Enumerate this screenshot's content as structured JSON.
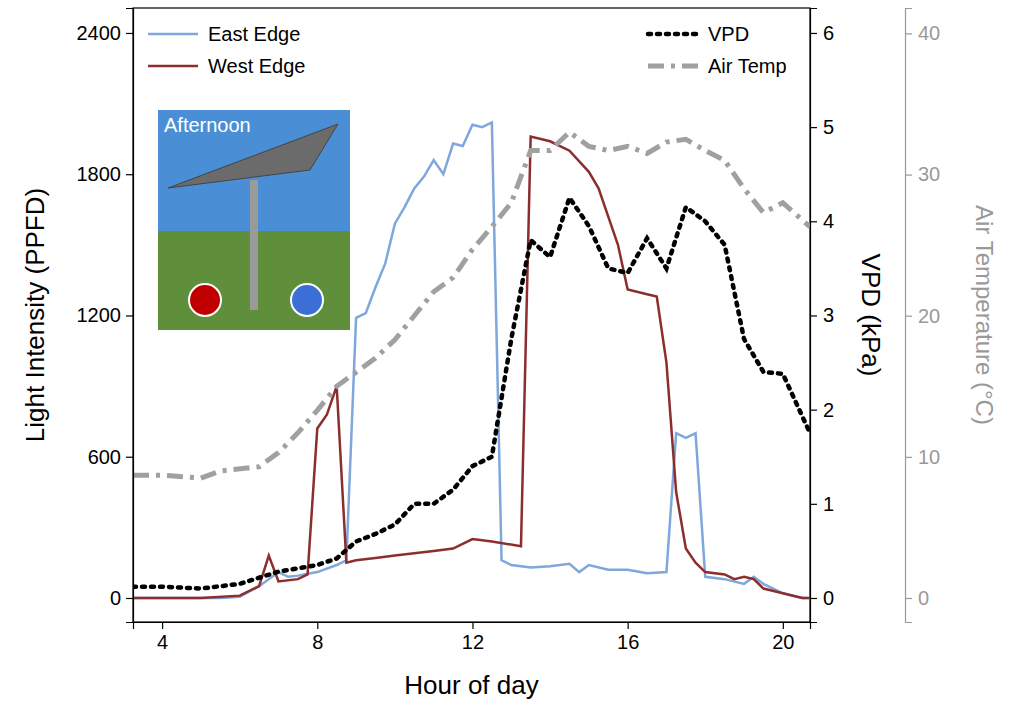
{
  "chart_data": {
    "type": "line",
    "x_label": "Hour of day",
    "y_label": "Light Intensity (PPFD)",
    "y2_label": "VPD (kPa)",
    "y3_label": "Air Temperature (°C)",
    "annotations": [
      "Afternoon"
    ],
    "xlim": [
      3.25,
      20.7
    ],
    "xticks": [
      4,
      8,
      12,
      16,
      20
    ],
    "ylim": [
      -102,
      2506
    ],
    "yticks": [
      0,
      600,
      1200,
      1800,
      2400
    ],
    "y2lim": [
      -0.255,
      6.265
    ],
    "y2ticks": [
      0,
      1,
      2,
      3,
      4,
      5,
      6
    ],
    "y3lim": [
      -1.7,
      41.8
    ],
    "y3ticks": [
      0,
      10,
      20,
      30,
      40
    ],
    "legend": "top",
    "series": [
      {
        "name": "East Edge",
        "color": "#7fa7dc",
        "line_style": "solid",
        "x": [
          3.25,
          4,
          5,
          5.5,
          6,
          6.5,
          7,
          7.25,
          7.5,
          8,
          8.5,
          8.75,
          9,
          9.25,
          9.5,
          9.75,
          10,
          10.25,
          10.5,
          10.75,
          11,
          11.25,
          11.5,
          11.75,
          12,
          12.25,
          12.5,
          12.75,
          13,
          13.5,
          14,
          14.5,
          14.75,
          15,
          15.5,
          16,
          16.5,
          17,
          17.25,
          17.5,
          17.75,
          18,
          18.5,
          19,
          19.25,
          19.5,
          20,
          20.5,
          20.7
        ],
        "values": [
          0,
          0,
          0,
          0,
          5,
          50,
          110,
          90,
          95,
          110,
          140,
          160,
          1190,
          1210,
          1320,
          1420,
          1590,
          1660,
          1740,
          1790,
          1860,
          1800,
          1930,
          1920,
          2010,
          2000,
          2020,
          160,
          140,
          130,
          135,
          145,
          110,
          140,
          120,
          120,
          105,
          110,
          700,
          680,
          700,
          90,
          80,
          60,
          90,
          60,
          20,
          0,
          0
        ]
      },
      {
        "name": "West Edge",
        "color": "#8b2e2e",
        "line_style": "solid",
        "x": [
          3.25,
          5,
          6,
          6.5,
          6.75,
          7,
          7.5,
          7.75,
          8,
          8.25,
          8.5,
          8.75,
          9,
          9.5,
          10,
          10.5,
          11,
          11.5,
          12,
          12.5,
          13.25,
          13.5,
          14,
          14.5,
          15,
          15.25,
          15.5,
          15.75,
          16,
          16.5,
          16.75,
          17,
          17.25,
          17.5,
          17.75,
          18,
          18.5,
          18.75,
          19,
          19.25,
          19.5,
          20,
          20.5,
          20.7
        ],
        "values": [
          0,
          0,
          10,
          50,
          180,
          70,
          80,
          100,
          720,
          780,
          900,
          150,
          160,
          170,
          180,
          190,
          200,
          210,
          250,
          240,
          220,
          1960,
          1940,
          1900,
          1810,
          1740,
          1620,
          1500,
          1310,
          1290,
          1280,
          1000,
          450,
          210,
          150,
          110,
          100,
          80,
          90,
          80,
          40,
          20,
          0,
          0
        ]
      },
      {
        "name": "VPD",
        "color": "#000000",
        "line_style": "dotted",
        "axis": "y2",
        "x": [
          3.25,
          4,
          5,
          6,
          7,
          8,
          8.5,
          9,
          9.5,
          10,
          10.5,
          11,
          11.5,
          12,
          12.5,
          13,
          13.5,
          14,
          14.5,
          15,
          15.5,
          16,
          16.5,
          17,
          17.5,
          18,
          18.5,
          19,
          19.5,
          20,
          20.7
        ],
        "values": [
          0.12,
          0.12,
          0.1,
          0.15,
          0.28,
          0.35,
          0.42,
          0.6,
          0.68,
          0.78,
          1.0,
          1.0,
          1.15,
          1.4,
          1.5,
          2.75,
          3.8,
          3.62,
          4.25,
          3.95,
          3.5,
          3.45,
          3.82,
          3.5,
          4.15,
          4.0,
          3.75,
          2.75,
          2.4,
          2.38,
          1.75
        ]
      },
      {
        "name": "Air Temp",
        "color": "#a0a0a0",
        "line_style": "dashdot",
        "axis": "y3",
        "x": [
          3.25,
          4,
          5,
          5.5,
          6.5,
          7,
          7.5,
          8,
          8.5,
          9,
          9.5,
          10,
          10.5,
          11,
          11.5,
          12,
          12.5,
          13,
          13.5,
          14,
          14.5,
          15,
          15.5,
          16,
          16.5,
          17,
          17.5,
          18,
          18.5,
          19,
          19.5,
          20,
          20.7
        ],
        "values": [
          8.7,
          8.7,
          8.5,
          9.0,
          9.3,
          10.3,
          11.7,
          13.3,
          15.0,
          16.0,
          17.0,
          18.3,
          20.0,
          21.7,
          22.7,
          24.7,
          26.3,
          28.0,
          31.7,
          31.7,
          33.0,
          32.0,
          31.7,
          32.0,
          31.5,
          32.3,
          32.5,
          31.7,
          31.0,
          29.0,
          27.3,
          28.0,
          26.3
        ]
      }
    ]
  }
}
